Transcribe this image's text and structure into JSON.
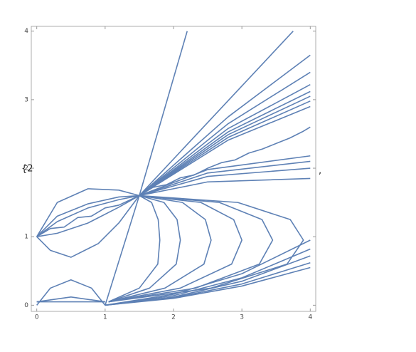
{
  "chart_data": {
    "type": "line",
    "color": "#5e81b5",
    "annotations": [
      "{2",
      ","
    ],
    "xlim": [
      -0.08,
      4.08
    ],
    "ylim": [
      -0.09,
      4.07
    ],
    "xticks": [
      0,
      1,
      2,
      3,
      4
    ],
    "yticks": [
      0,
      1,
      2,
      3,
      4
    ],
    "series": [
      {
        "x": [
          1.5,
          2.2
        ],
        "values": [
          1.6,
          4
        ]
      },
      {
        "x": [
          1.5,
          3.75
        ],
        "values": [
          1.6,
          4
        ]
      },
      {
        "x": [
          1.5,
          2.8,
          4
        ],
        "values": [
          1.6,
          2.75,
          3.65
        ]
      },
      {
        "x": [
          1.5,
          2.8,
          4
        ],
        "values": [
          1.6,
          2.65,
          3.4
        ]
      },
      {
        "x": [
          1.5,
          2.8,
          4
        ],
        "values": [
          1.6,
          2.58,
          3.22
        ]
      },
      {
        "x": [
          1.5,
          2.8,
          4
        ],
        "values": [
          1.6,
          2.53,
          3.12
        ]
      },
      {
        "x": [
          1.5,
          2.8,
          4
        ],
        "values": [
          1.6,
          2.49,
          3.05
        ]
      },
      {
        "x": [
          1.5,
          2.8,
          4
        ],
        "values": [
          1.6,
          2.45,
          2.98
        ]
      },
      {
        "x": [
          1.5,
          2.8,
          4
        ],
        "values": [
          1.6,
          2.41,
          2.9
        ]
      },
      {
        "x": [
          1.5,
          1.7,
          1.9,
          2.1,
          2.3,
          2.5,
          2.7,
          2.9,
          3.1,
          3.3,
          3.5,
          3.7,
          3.9,
          4
        ],
        "values": [
          1.6,
          1.72,
          1.76,
          1.86,
          1.9,
          2.0,
          2.08,
          2.12,
          2.22,
          2.28,
          2.36,
          2.44,
          2.54,
          2.6
        ]
      },
      {
        "x": [
          1.5,
          2.5,
          4
        ],
        "values": [
          1.6,
          1.98,
          2.18
        ]
      },
      {
        "x": [
          1.5,
          2.5,
          4
        ],
        "values": [
          1.6,
          1.93,
          2.1
        ]
      },
      {
        "x": [
          1.5,
          2.5,
          4
        ],
        "values": [
          1.6,
          1.88,
          2.0
        ]
      },
      {
        "x": [
          1.5,
          2.5,
          4
        ],
        "values": [
          1.6,
          1.8,
          1.85
        ]
      },
      {
        "x": [
          1.5,
          1.68,
          1.776,
          1.8,
          1.77,
          1.5,
          1.05
        ],
        "values": [
          1.6,
          1.5,
          1.25,
          0.95,
          0.6,
          0.25,
          0.05
        ]
      },
      {
        "x": [
          1.5,
          1.86,
          2.052,
          2.1,
          2.04,
          1.65,
          1.05
        ],
        "values": [
          1.6,
          1.5,
          1.25,
          0.95,
          0.6,
          0.25,
          0.05
        ]
      },
      {
        "x": [
          1.5,
          2.13,
          2.466,
          2.55,
          2.445,
          1.875,
          1.05
        ],
        "values": [
          1.6,
          1.5,
          1.25,
          0.95,
          0.6,
          0.25,
          0.05
        ]
      },
      {
        "x": [
          1.5,
          2.4,
          2.88,
          3.0,
          2.85,
          2.1,
          1.05
        ],
        "values": [
          1.6,
          1.5,
          1.25,
          0.95,
          0.6,
          0.25,
          0.05
        ]
      },
      {
        "x": [
          1.5,
          2.67,
          3.294,
          3.45,
          3.255,
          2.325,
          1.05
        ],
        "values": [
          1.6,
          1.5,
          1.25,
          0.95,
          0.6,
          0.25,
          0.05
        ]
      },
      {
        "x": [
          1.5,
          2.94,
          3.708,
          3.9,
          3.66,
          2.55,
          1.05
        ],
        "values": [
          1.6,
          1.5,
          1.25,
          0.95,
          0.6,
          0.25,
          0.05
        ]
      },
      {
        "x": [
          1.0,
          1.5
        ],
        "values": [
          0,
          1.6
        ]
      },
      {
        "x": [
          1.0,
          2,
          3,
          4
        ],
        "values": [
          0,
          0.1,
          0.28,
          0.55
        ]
      },
      {
        "x": [
          1.0,
          2,
          3,
          4
        ],
        "values": [
          0,
          0.11,
          0.31,
          0.62
        ]
      },
      {
        "x": [
          1.0,
          2,
          3,
          4
        ],
        "values": [
          0,
          0.12,
          0.35,
          0.72
        ]
      },
      {
        "x": [
          1.0,
          2,
          3,
          4
        ],
        "values": [
          0,
          0.14,
          0.4,
          0.82
        ]
      },
      {
        "x": [
          1.0,
          2,
          3,
          4
        ],
        "values": [
          0,
          0.16,
          0.46,
          0.95
        ]
      },
      {
        "x": [
          0,
          0.3,
          0.75,
          1.2,
          1.5
        ],
        "values": [
          1,
          1.5,
          1.7,
          1.68,
          1.6
        ]
      },
      {
        "x": [
          0,
          0.3,
          0.75,
          1.2,
          1.5
        ],
        "values": [
          1,
          1.3,
          1.48,
          1.58,
          1.6
        ]
      },
      {
        "x": [
          0,
          0.3,
          0.75,
          1.2,
          1.5
        ],
        "values": [
          1,
          1.22,
          1.42,
          1.54,
          1.6
        ]
      },
      {
        "x": [
          0,
          0.3,
          0.75,
          1.2,
          1.5
        ],
        "values": [
          1,
          1.05,
          1.2,
          1.43,
          1.6
        ]
      },
      {
        "x": [
          0,
          0.2,
          0.4,
          0.6,
          0.8,
          1.0,
          1.2,
          1.5
        ],
        "values": [
          1,
          1.12,
          1.14,
          1.28,
          1.3,
          1.42,
          1.46,
          1.6
        ]
      },
      {
        "x": [
          0,
          0.2,
          0.5,
          0.9,
          1.2,
          1.5
        ],
        "values": [
          1,
          0.8,
          0.7,
          0.9,
          1.2,
          1.6
        ]
      },
      {
        "x": [
          0,
          0.2,
          0.5,
          0.8,
          1.0
        ],
        "values": [
          0,
          0.25,
          0.37,
          0.25,
          0
        ]
      },
      {
        "x": [
          0,
          0.5,
          1.0
        ],
        "values": [
          0.05,
          0.12,
          0.05
        ]
      },
      {
        "x": [
          0,
          1.0
        ],
        "values": [
          0.05,
          0.05
        ]
      }
    ]
  }
}
